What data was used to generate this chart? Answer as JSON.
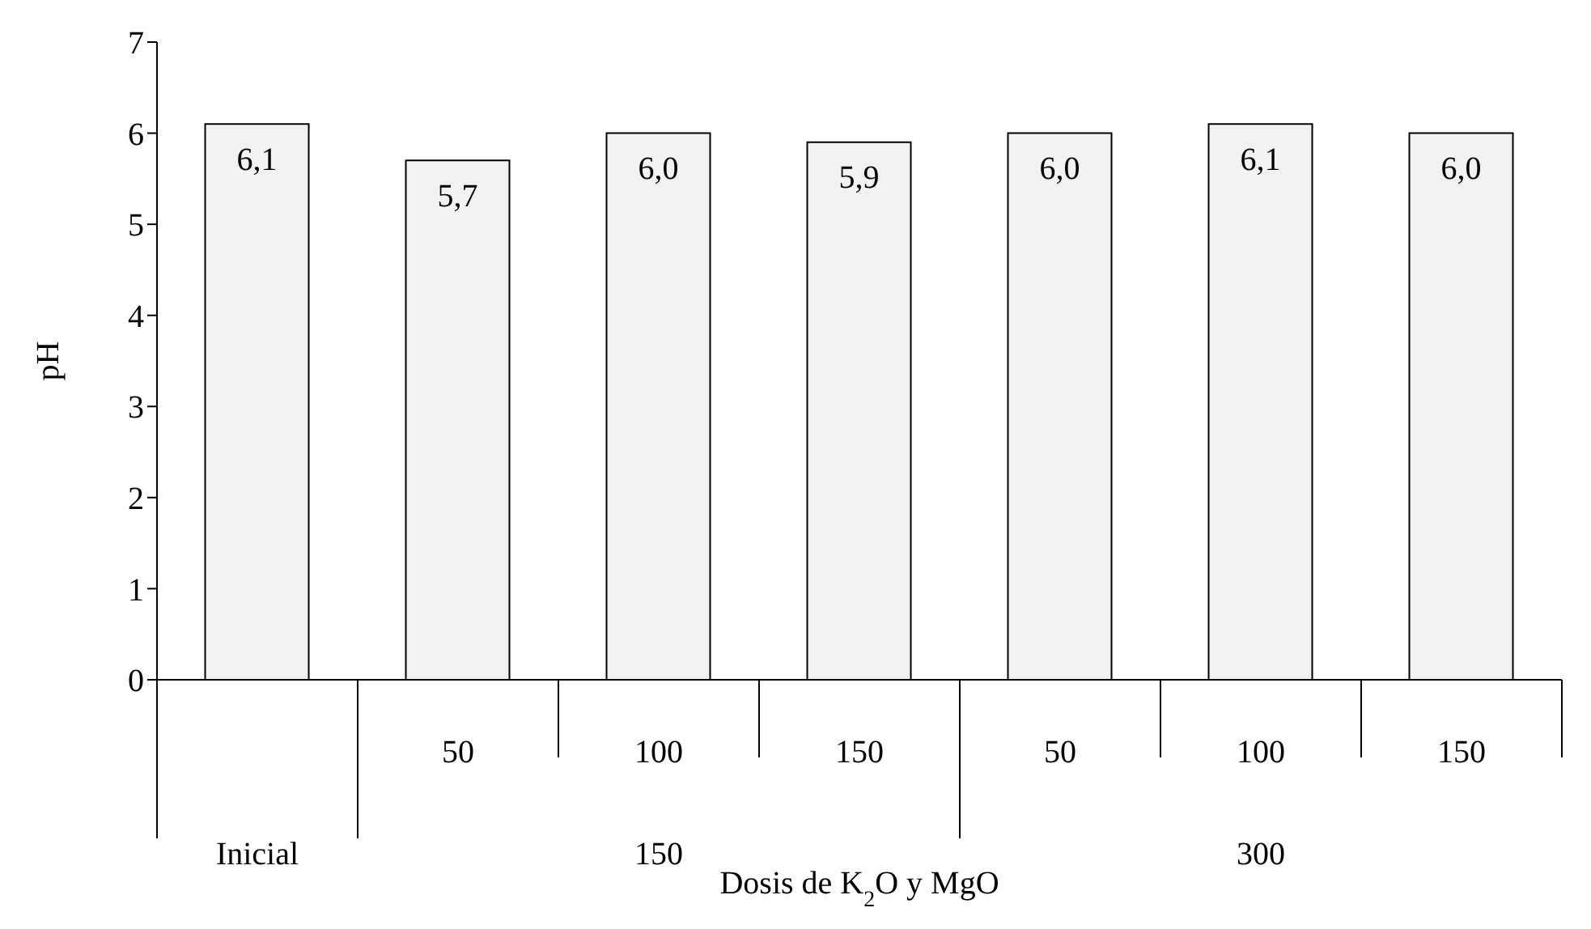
{
  "chart_data": {
    "type": "bar",
    "ylabel": "pH",
    "xlabel": "Dosis de K$_{2}$O y MgO",
    "categories": [
      null,
      "50",
      "100",
      "150",
      "50",
      "100",
      "150"
    ],
    "values": [
      6.1,
      5.7,
      6.0,
      5.9,
      6.0,
      6.1,
      6.0
    ],
    "value_labels": [
      "6,1",
      "5,7",
      "6,0",
      "5,9",
      "6,0",
      "6,1",
      "6,0"
    ],
    "color": "#f2f2f2",
    "ylim": [
      0,
      7
    ],
    "yticks": [
      0,
      1,
      2,
      3,
      4,
      5,
      6,
      7
    ],
    "annotations": [
      "Inicial",
      "150",
      "300"
    ],
    "grid": false,
    "legend": false
  }
}
